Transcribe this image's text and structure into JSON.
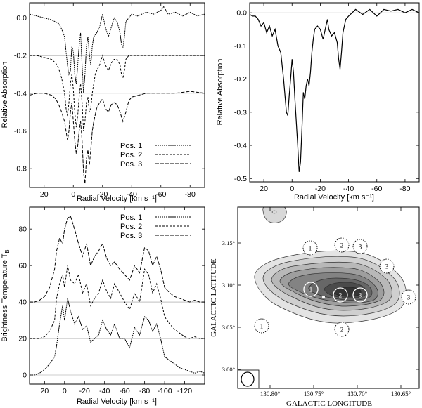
{
  "chart_data": [
    {
      "id": "p1",
      "type": "line",
      "xlabel": "Radial Velocity [km s⁻¹]",
      "ylabel": "Relative Absorption",
      "xlim": [
        30,
        -90
      ],
      "ylim": [
        -0.9,
        0.08
      ],
      "xticks": [
        20,
        0,
        -20,
        -40,
        -60,
        -80
      ],
      "xtick_labels": [
        "20",
        "0",
        "-20",
        "-40",
        "-60",
        "-80"
      ],
      "yticks": [
        0,
        -0.2,
        -0.4,
        -0.6,
        -0.8
      ],
      "ytick_labels": [
        "0.0",
        "-0.2",
        "-0.4",
        "-0.6",
        "-0.8"
      ],
      "hlines": [
        0,
        -0.2,
        -0.4
      ],
      "legend": "bottom-right",
      "series": [
        {
          "name": "Pos. 1",
          "dash": "2,1",
          "x": [
            30,
            25,
            20,
            15,
            10,
            8,
            6,
            5,
            4,
            3,
            2,
            1,
            0,
            -1,
            -2,
            -3,
            -4,
            -5,
            -6,
            -7,
            -8,
            -9,
            -10,
            -11,
            -12,
            -13,
            -14,
            -16,
            -18,
            -20,
            -22,
            -24,
            -26,
            -28,
            -30,
            -32,
            -33,
            -34,
            -35,
            -36,
            -38,
            -40,
            -44,
            -50,
            -55,
            -60,
            -62,
            -65,
            -70,
            -75,
            -80,
            -85,
            -90
          ],
          "y": [
            0.02,
            0.01,
            0.0,
            -0.01,
            -0.03,
            -0.06,
            -0.1,
            -0.18,
            -0.25,
            -0.3,
            -0.28,
            -0.15,
            -0.18,
            -0.3,
            -0.35,
            -0.25,
            -0.15,
            -0.08,
            -0.25,
            -0.4,
            -0.3,
            -0.15,
            -0.1,
            -0.2,
            -0.25,
            -0.15,
            -0.1,
            -0.08,
            -0.05,
            0.02,
            -0.05,
            -0.1,
            -0.05,
            0.0,
            -0.02,
            -0.08,
            -0.14,
            -0.16,
            -0.1,
            -0.02,
            0.0,
            0.02,
            0.01,
            0.03,
            0.02,
            0.04,
            0.06,
            0.02,
            0.03,
            0.01,
            0.03,
            0.01,
            0.02
          ]
        },
        {
          "name": "Pos. 2",
          "dash": "3,2",
          "x": [
            30,
            25,
            20,
            15,
            12,
            10,
            8,
            6,
            5,
            4,
            3,
            2,
            1,
            0,
            -1,
            -2,
            -3,
            -4,
            -5,
            -6,
            -7,
            -8,
            -9,
            -10,
            -11,
            -12,
            -13,
            -14,
            -15,
            -16,
            -18,
            -20,
            -22,
            -24,
            -26,
            -28,
            -30,
            -32,
            -33,
            -34,
            -35,
            -36,
            -38,
            -40,
            -45,
            -50,
            -60,
            -70,
            -80,
            -90
          ],
          "y": [
            -0.2,
            -0.2,
            -0.21,
            -0.22,
            -0.24,
            -0.27,
            -0.32,
            -0.4,
            -0.48,
            -0.52,
            -0.45,
            -0.35,
            -0.3,
            -0.38,
            -0.5,
            -0.58,
            -0.52,
            -0.42,
            -0.35,
            -0.45,
            -0.6,
            -0.55,
            -0.45,
            -0.42,
            -0.5,
            -0.48,
            -0.4,
            -0.35,
            -0.3,
            -0.28,
            -0.25,
            -0.2,
            -0.25,
            -0.28,
            -0.24,
            -0.22,
            -0.22,
            -0.25,
            -0.3,
            -0.32,
            -0.28,
            -0.22,
            -0.2,
            -0.2,
            -0.2,
            -0.2,
            -0.2,
            -0.2,
            -0.2,
            -0.2
          ]
        },
        {
          "name": "Pos. 3",
          "dash": "5,2",
          "x": [
            30,
            25,
            20,
            15,
            12,
            10,
            8,
            6,
            5,
            4,
            3,
            2,
            1,
            0,
            -1,
            -2,
            -3,
            -4,
            -5,
            -6,
            -7,
            -8,
            -9,
            -10,
            -11,
            -12,
            -13,
            -14,
            -16,
            -18,
            -20,
            -22,
            -24,
            -26,
            -28,
            -30,
            -32,
            -34,
            -36,
            -38,
            -40,
            -45,
            -50,
            -60,
            -70,
            -80,
            -90
          ],
          "y": [
            -0.41,
            -0.4,
            -0.4,
            -0.41,
            -0.43,
            -0.46,
            -0.5,
            -0.55,
            -0.6,
            -0.65,
            -0.6,
            -0.5,
            -0.45,
            -0.55,
            -0.65,
            -0.72,
            -0.68,
            -0.6,
            -0.55,
            -0.65,
            -0.82,
            -0.88,
            -0.75,
            -0.7,
            -0.78,
            -0.7,
            -0.6,
            -0.55,
            -0.48,
            -0.45,
            -0.43,
            -0.48,
            -0.5,
            -0.46,
            -0.45,
            -0.46,
            -0.5,
            -0.55,
            -0.5,
            -0.44,
            -0.42,
            -0.41,
            -0.4,
            -0.4,
            -0.4,
            -0.39,
            -0.4
          ]
        }
      ]
    },
    {
      "id": "p2",
      "type": "line",
      "xlabel": "Radial Velocity [km s⁻¹]",
      "ylabel": "Relative Absorption",
      "xlim": [
        30,
        -90
      ],
      "ylim": [
        -0.51,
        0.03
      ],
      "xticks": [
        20,
        0,
        -20,
        -40,
        -60,
        -80
      ],
      "xtick_labels": [
        "20",
        "0",
        "-20",
        "-40",
        "-60",
        "-80"
      ],
      "yticks": [
        0,
        -0.1,
        -0.2,
        -0.3,
        -0.4,
        -0.5
      ],
      "ytick_labels": [
        "0.0",
        "-0.1",
        "-0.2",
        "-0.3",
        "-0.4",
        "-0.5"
      ],
      "hlines": [
        0
      ],
      "series": [
        {
          "name": "",
          "dash": "",
          "x": [
            30,
            28,
            26,
            24,
            22,
            20,
            18,
            16,
            14,
            12,
            10,
            8,
            6,
            4,
            3,
            2,
            1,
            0,
            -1,
            -2,
            -3,
            -4,
            -5,
            -6,
            -7,
            -8,
            -9,
            -10,
            -11,
            -12,
            -13,
            -14,
            -15,
            -16,
            -18,
            -20,
            -22,
            -24,
            -25,
            -26,
            -28,
            -30,
            -32,
            -33,
            -34,
            -35,
            -36,
            -38,
            -40,
            -45,
            -50,
            -55,
            -60,
            -65,
            -70,
            -75,
            -80,
            -85,
            -90
          ],
          "y": [
            -0.005,
            -0.01,
            -0.01,
            -0.02,
            -0.04,
            -0.03,
            -0.06,
            -0.04,
            -0.07,
            -0.05,
            -0.1,
            -0.12,
            -0.2,
            -0.3,
            -0.31,
            -0.25,
            -0.2,
            -0.14,
            -0.18,
            -0.26,
            -0.33,
            -0.4,
            -0.48,
            -0.45,
            -0.35,
            -0.24,
            -0.26,
            -0.22,
            -0.2,
            -0.22,
            -0.18,
            -0.12,
            -0.08,
            -0.05,
            -0.04,
            -0.05,
            -0.08,
            -0.04,
            -0.02,
            -0.05,
            -0.07,
            -0.06,
            -0.09,
            -0.14,
            -0.17,
            -0.12,
            -0.06,
            -0.02,
            -0.01,
            0.01,
            -0.005,
            0.01,
            -0.01,
            0.01,
            0.005,
            0.01,
            0.0,
            0.01,
            0.0
          ]
        }
      ]
    },
    {
      "id": "p3",
      "type": "line",
      "xlabel": "Radial Velocity [km s⁻¹]",
      "ylabel": "Brightness Temperature T",
      "ylabel_sub": "B",
      "xlim": [
        35,
        -140
      ],
      "ylim": [
        -5,
        92
      ],
      "xticks": [
        20,
        0,
        -20,
        -40,
        -60,
        -80,
        -100,
        -120
      ],
      "xtick_labels": [
        "20",
        "0",
        "-20",
        "-40",
        "-60",
        "-80",
        "-100",
        "-120"
      ],
      "yticks": [
        0,
        20,
        40,
        60,
        80
      ],
      "ytick_labels": [
        "0",
        "20",
        "40",
        "60",
        "80"
      ],
      "hlines": [
        0,
        20,
        40
      ],
      "legend": "top-right",
      "series": [
        {
          "name": "Pos. 1",
          "dash": "2,1",
          "x": [
            35,
            30,
            25,
            20,
            15,
            10,
            8,
            5,
            2,
            0,
            -3,
            -6,
            -10,
            -14,
            -18,
            -22,
            -26,
            -30,
            -34,
            -38,
            -42,
            -46,
            -50,
            -55,
            -60,
            -65,
            -70,
            -75,
            -80,
            -84,
            -88,
            -92,
            -96,
            -100,
            -105,
            -110,
            -115,
            -120,
            -125,
            -130,
            -135,
            -140
          ],
          "y": [
            0,
            0,
            1,
            3,
            6,
            10,
            16,
            28,
            38,
            30,
            42,
            35,
            28,
            32,
            25,
            27,
            18,
            20,
            22,
            30,
            25,
            22,
            28,
            20,
            20,
            15,
            26,
            22,
            32,
            30,
            24,
            28,
            20,
            10,
            8,
            6,
            4,
            3,
            2,
            1,
            2,
            1
          ]
        },
        {
          "name": "Pos. 2",
          "dash": "3,2",
          "x": [
            35,
            30,
            25,
            20,
            15,
            10,
            8,
            5,
            2,
            0,
            -3,
            -6,
            -10,
            -14,
            -18,
            -22,
            -26,
            -30,
            -34,
            -38,
            -42,
            -46,
            -50,
            -55,
            -60,
            -65,
            -70,
            -75,
            -80,
            -84,
            -88,
            -92,
            -96,
            -100,
            -105,
            -110,
            -115,
            -120,
            -125,
            -130,
            -135,
            -140
          ],
          "y": [
            20,
            20,
            20,
            21,
            24,
            30,
            42,
            50,
            55,
            48,
            60,
            52,
            50,
            55,
            45,
            50,
            38,
            42,
            45,
            52,
            46,
            42,
            50,
            45,
            40,
            36,
            45,
            40,
            58,
            55,
            45,
            50,
            42,
            32,
            28,
            25,
            23,
            21,
            20,
            21,
            20,
            20
          ]
        },
        {
          "name": "Pos. 3",
          "dash": "5,2",
          "x": [
            35,
            30,
            25,
            20,
            15,
            10,
            8,
            5,
            2,
            0,
            -3,
            -6,
            -10,
            -14,
            -18,
            -22,
            -26,
            -30,
            -34,
            -38,
            -42,
            -46,
            -50,
            -55,
            -60,
            -65,
            -70,
            -75,
            -80,
            -84,
            -88,
            -92,
            -96,
            -100,
            -105,
            -110,
            -115,
            -120,
            -125,
            -130,
            -135,
            -140
          ],
          "y": [
            40,
            40,
            41,
            43,
            48,
            58,
            68,
            75,
            72,
            80,
            86,
            87,
            80,
            72,
            65,
            72,
            60,
            65,
            68,
            72,
            64,
            60,
            62,
            58,
            55,
            52,
            60,
            56,
            70,
            68,
            60,
            65,
            58,
            48,
            45,
            43,
            42,
            41,
            40,
            41,
            40,
            40
          ]
        }
      ]
    },
    {
      "id": "p4",
      "type": "contour",
      "xlabel": "GALACTIC LONGITUDE",
      "ylabel": "GALACTIC LATITUDE",
      "xticks": [
        "130.80°",
        "130.75°",
        "130.70°",
        "130.65°"
      ],
      "yticks": [
        "3.15°",
        "3.10°",
        "3.05°",
        "3.00°"
      ],
      "contour_levels": 8,
      "positions": [
        {
          "label": "1",
          "marker": "dotted"
        },
        {
          "label": "2",
          "marker": "dotted"
        },
        {
          "label": "3",
          "marker": "dotted"
        },
        {
          "label": "3",
          "marker": "dotted"
        },
        {
          "label": "1",
          "marker": "solid"
        },
        {
          "label": "2",
          "marker": "solid"
        },
        {
          "label": "3",
          "marker": "solid"
        },
        {
          "label": "3",
          "marker": "dotted"
        },
        {
          "label": "1",
          "marker": "dotted"
        },
        {
          "label": "2",
          "marker": "dotted"
        }
      ],
      "beam": "ellipse"
    }
  ]
}
